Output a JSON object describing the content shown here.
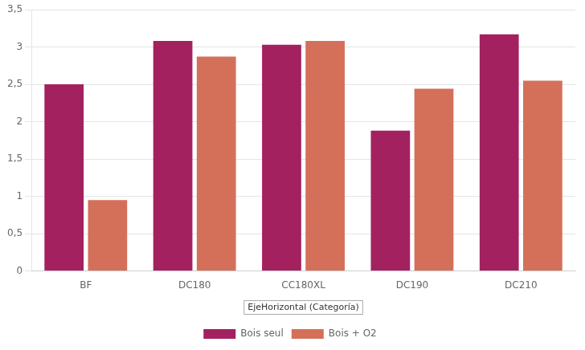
{
  "chart_data": {
    "type": "bar",
    "categories": [
      "BF",
      "DC180",
      "CC180XL",
      "DC190",
      "DC210"
    ],
    "series": [
      {
        "name": "Bois seul",
        "color": "#A3215F",
        "values": [
          2.5,
          3.08,
          3.03,
          1.88,
          3.17
        ]
      },
      {
        "name": "Bois + O2",
        "color": "#D4705A",
        "values": [
          0.95,
          2.87,
          3.08,
          2.44,
          2.55
        ]
      }
    ],
    "ylim": [
      0,
      3.5
    ],
    "yticks": [
      0,
      {
        "value": 0.5,
        "label": "0,5"
      },
      1,
      {
        "value": 1.5,
        "label": "1,5"
      },
      2,
      {
        "value": 2.5,
        "label": "2,5"
      },
      3,
      {
        "value": 3.5,
        "label": "3,5"
      }
    ],
    "grid": true,
    "legend": "bottom",
    "annotations": [
      {
        "text": "EjeHorizontal (Categoría)",
        "x": "CC180XL"
      }
    ]
  }
}
